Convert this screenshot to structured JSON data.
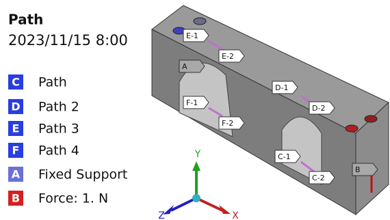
{
  "header": {
    "title": "Path",
    "date": "2023/11/15 8:00"
  },
  "legend": [
    {
      "letter": "C",
      "label": "Path",
      "color": "#2a3de0"
    },
    {
      "letter": "D",
      "label": "Path 2",
      "color": "#2a3de0"
    },
    {
      "letter": "E",
      "label": "Path 3",
      "color": "#2a3de0"
    },
    {
      "letter": "F",
      "label": "Path 4",
      "color": "#2a3de0"
    },
    {
      "letter": "A",
      "label": "Fixed Support",
      "color": "#6b6fd6"
    },
    {
      "letter": "B",
      "label": "Force: 1. N",
      "color": "#d42020"
    }
  ],
  "model_tags": [
    "E-1",
    "E-2",
    "A",
    "D-1",
    "D-2",
    "F-1",
    "F-2",
    "C-1",
    "C-2",
    "B"
  ],
  "axes": {
    "y": "Y",
    "x": "X",
    "z": "Z"
  }
}
